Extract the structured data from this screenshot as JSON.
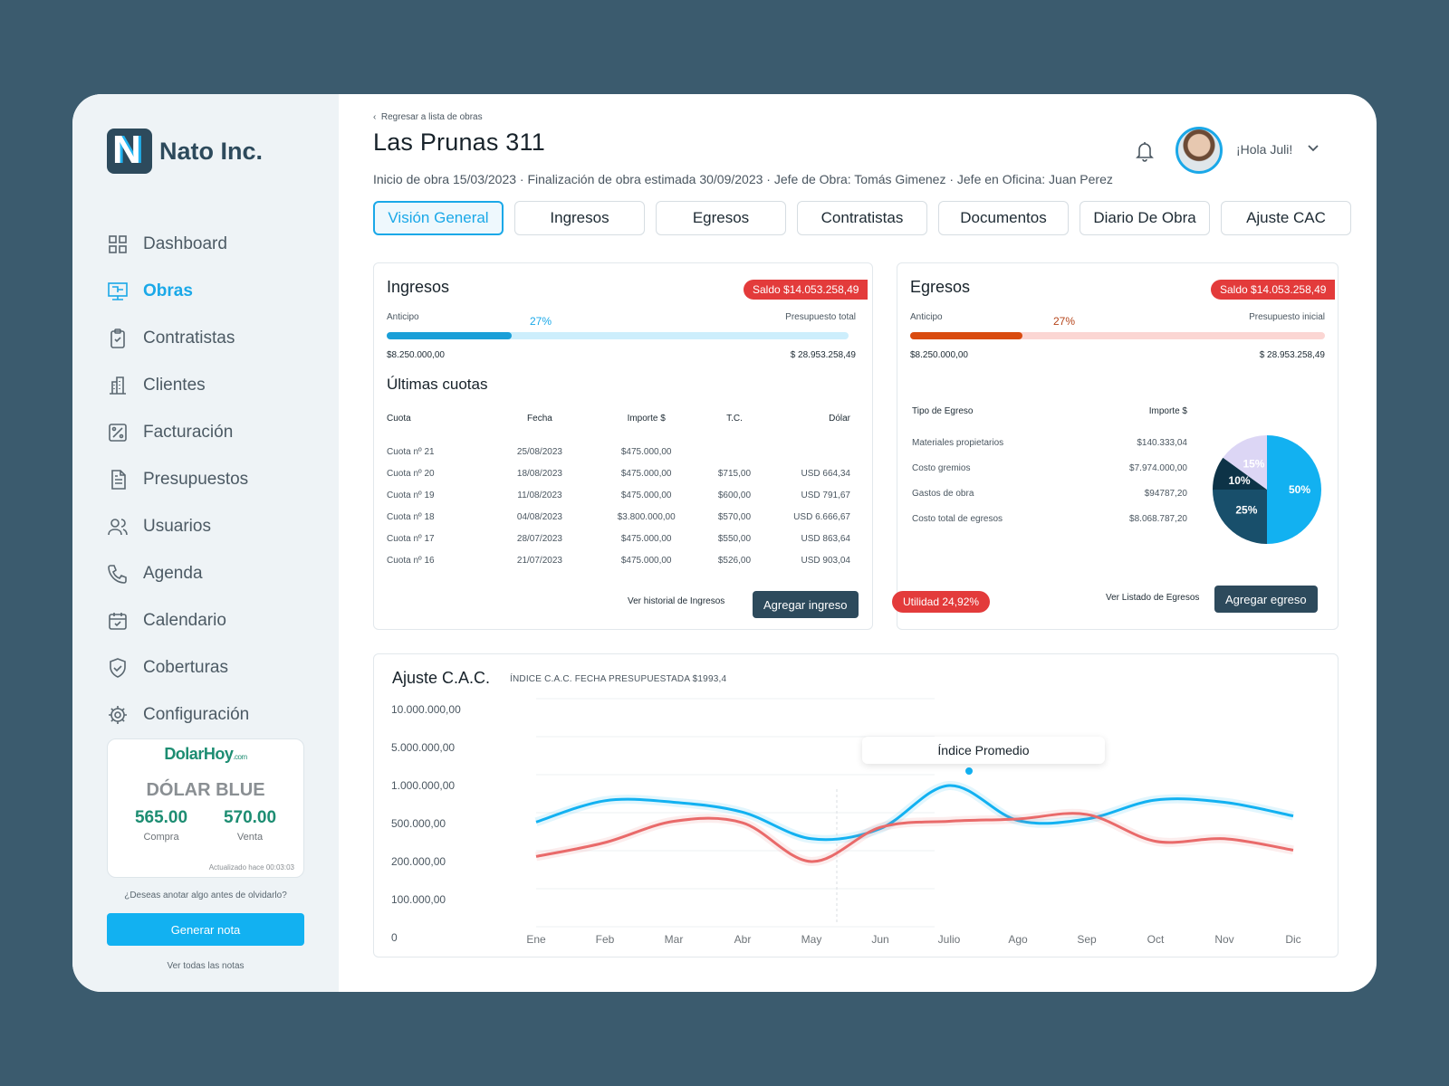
{
  "brand": {
    "name": "Nato Inc.",
    "letter": "N"
  },
  "sidebar": {
    "items": [
      {
        "label": "Dashboard",
        "icon": "grid-icon"
      },
      {
        "label": "Obras",
        "icon": "blueprint-icon",
        "active": true
      },
      {
        "label": "Contratistas",
        "icon": "clipboard-icon"
      },
      {
        "label": "Clientes",
        "icon": "building-icon"
      },
      {
        "label": "Facturación",
        "icon": "percent-icon"
      },
      {
        "label": "Presupuestos",
        "icon": "document-icon"
      },
      {
        "label": "Usuarios",
        "icon": "users-icon"
      },
      {
        "label": "Agenda",
        "icon": "phone-icon"
      },
      {
        "label": "Calendario",
        "icon": "calendar-icon"
      },
      {
        "label": "Coberturas",
        "icon": "shield-icon"
      },
      {
        "label": "Configuración",
        "icon": "gear-icon"
      }
    ]
  },
  "dolar": {
    "logo": "DolarHoy",
    "logo_suffix": ".com",
    "title": "DÓLAR BLUE",
    "compra_value": "565.00",
    "compra_label": "Compra",
    "venta_value": "570.00",
    "venta_label": "Venta",
    "updated": "Actualizado hace 00:03:03"
  },
  "notes": {
    "question": "¿Deseas anotar algo antes de olvidarlo?",
    "button": "Generar nota",
    "link": "Ver todas las notas"
  },
  "header": {
    "back": "Regresar a  lista de obras",
    "title": "Las Prunas 311",
    "subtitle": "Inicio de obra 15/03/2023 · Finalización de obra estimada 30/09/2023 ·  Jefe de Obra: Tomás Gimenez ·  Jefe en Oficina: Juan Perez",
    "greeting": "¡Hola Juli!"
  },
  "tabs": [
    "Visión General",
    "Ingresos",
    "Egresos",
    "Contratistas",
    "Documentos",
    "Diario De Obra",
    "Ajuste CAC"
  ],
  "ingresos": {
    "title": "Ingresos",
    "saldo": "Saldo  $14.053.258,49",
    "left_label": "Anticipo",
    "right_label": "Presupuesto total",
    "percent": 0.27,
    "percent_label": "27%",
    "left_amount": "$8.250.000,00",
    "right_amount": "$ 28.953.258,49",
    "cuotas_title": "Últimas cuotas",
    "columns": [
      "Cuota",
      "Fecha",
      "Importe $",
      "T.C.",
      "Dólar"
    ],
    "rows": [
      [
        "Cuota nº 21",
        "25/08/2023",
        "$475.000,00",
        "",
        ""
      ],
      [
        "Cuota nº 20",
        "18/08/2023",
        "$475.000,00",
        "$715,00",
        "USD  664,34"
      ],
      [
        "Cuota nº 19",
        "11/08/2023",
        "$475.000,00",
        "$600,00",
        "USD  791,67"
      ],
      [
        "Cuota nº 18",
        "04/08/2023",
        "$3.800.000,00",
        "$570,00",
        "USD  6.666,67"
      ],
      [
        "Cuota nº 17",
        "28/07/2023",
        "$475.000,00",
        "$550,00",
        "USD  863,64"
      ],
      [
        "Cuota nº 16",
        "21/07/2023",
        "$475.000,00",
        "$526,00",
        "USD  903,04"
      ]
    ],
    "link": "Ver historial de Ingresos",
    "button": "Agregar ingreso"
  },
  "egresos": {
    "title": "Egresos",
    "saldo": "Saldo  $14.053.258,49",
    "left_label": "Anticipo",
    "right_label": "Presupuesto inicial",
    "percent": 0.27,
    "percent_label": "27%",
    "left_amount": "$8.250.000,00",
    "right_amount": "$ 28.953.258,49",
    "columns": [
      "Tipo de Egreso",
      "Importe $"
    ],
    "rows": [
      [
        "Materiales propietarios",
        "$140.333,04"
      ],
      [
        "Costo gremios",
        "$7.974.000,00"
      ],
      [
        "Gastos de obra",
        "$94787,20"
      ],
      [
        "Costo total  de egresos",
        "$8.068.787,20"
      ]
    ],
    "pie": [
      {
        "label": "50%",
        "value": 50,
        "color": "#12b1f1"
      },
      {
        "label": "25%",
        "value": 25,
        "color": "#184f6b"
      },
      {
        "label": "10%",
        "value": 10,
        "color": "#0d3347"
      },
      {
        "label": "15%",
        "value": 15,
        "color": "#dcd6f5"
      }
    ],
    "utilidad": "Utilidad 24,92%",
    "link": "Ver Listado de Egresos",
    "button": "Agregar egreso"
  },
  "cac": {
    "title": "Ajuste C.A.C.",
    "subtitle": "ÍNDICE C.A.C. FECHA PRESUPUESTADA $1993,4",
    "tooltip": "Índice Promedio"
  },
  "chart_data": {
    "type": "line",
    "categories": [
      "Ene",
      "Feb",
      "Mar",
      "Abr",
      "May",
      "Jun",
      "Julio",
      "Ago",
      "Sep",
      "Oct",
      "Nov",
      "Dic"
    ],
    "y_ticks": [
      "10.000.000,00",
      "5.000.000,00",
      "1.000.000,00",
      "500.000,00",
      "200.000,00",
      "100.000,00",
      "0"
    ],
    "y_scale": "categorical-log",
    "grid": true,
    "series": [
      {
        "color": "#12b1f1",
        "values": [
          520000,
          800000,
          780000,
          650000,
          380000,
          460000,
          1000000,
          540000,
          560000,
          810000,
          780000,
          600000
        ]
      },
      {
        "color": "#e96a6a",
        "values": [
          240000,
          350000,
          530000,
          510000,
          200000,
          470000,
          530000,
          560000,
          620000,
          360000,
          380000,
          290000
        ]
      }
    ]
  }
}
